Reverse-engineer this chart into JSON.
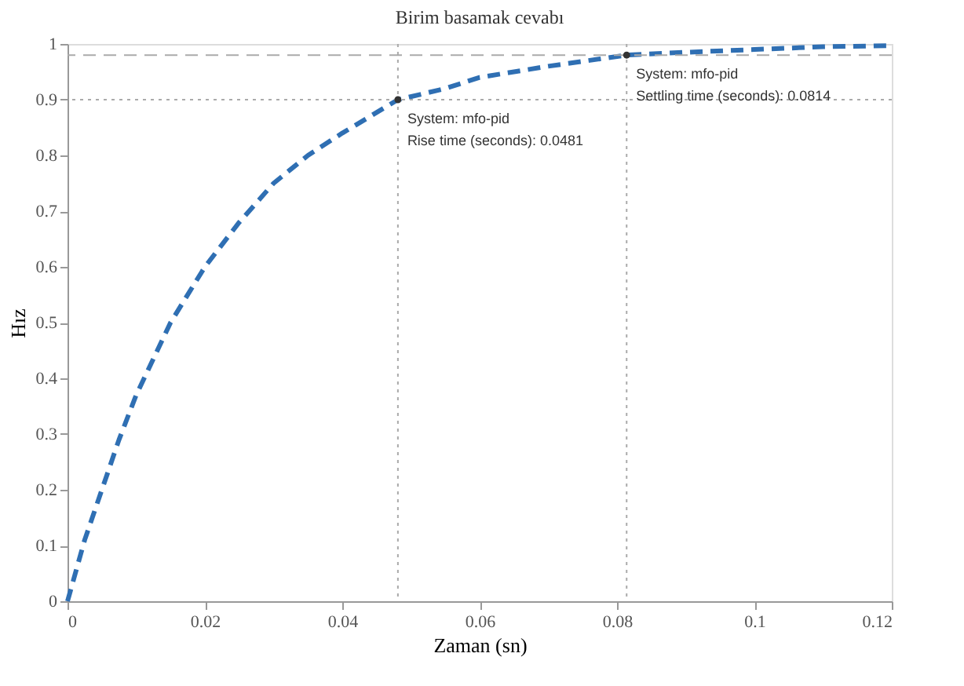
{
  "chart_data": {
    "type": "line",
    "title": "Birim basamak cevabı",
    "xlabel": "Zaman (sn)",
    "ylabel": "Hız",
    "x": [
      0,
      0.0025,
      0.005,
      0.0075,
      0.01,
      0.015,
      0.02,
      0.025,
      0.03,
      0.035,
      0.04,
      0.0481,
      0.055,
      0.06,
      0.07,
      0.0814,
      0.09,
      0.1,
      0.11,
      0.12
    ],
    "series": [
      {
        "color": "#2f6fb3",
        "values": [
          0,
          0.11,
          0.2,
          0.29,
          0.37,
          0.5,
          0.6,
          0.68,
          0.75,
          0.8,
          0.84,
          0.9,
          0.92,
          0.94,
          0.96,
          0.98,
          0.985,
          0.99,
          0.995,
          0.997
        ]
      }
    ],
    "xlim": [
      0,
      0.12
    ],
    "xticks": [
      0,
      0.02,
      0.04,
      0.06,
      0.08,
      0.1,
      0.12
    ],
    "ylim": [
      0,
      1
    ],
    "yticks": [
      0,
      0.1,
      0.2,
      0.3,
      0.4,
      0.5,
      0.6,
      0.7,
      0.8,
      0.9,
      1
    ],
    "ref_lines": [
      {
        "axis": "y",
        "value": 0.9,
        "color": "#aaaaaa",
        "line_style": "dotted"
      },
      {
        "axis": "y",
        "value": 0.98,
        "color": "#aaaaaa",
        "line_style": "dashed"
      },
      {
        "axis": "x",
        "value": 0.0481,
        "color": "#aaaaaa",
        "line_style": "dotted"
      },
      {
        "axis": "x",
        "value": 0.0814,
        "color": "#aaaaaa",
        "line_style": "dotted"
      }
    ],
    "annotations": [
      {
        "text": "System: mfo-pid\nRise time (seconds): 0.0481",
        "x": 0.0481,
        "y": 0.9
      },
      {
        "text": "System: mfo-pid\nSettling time (seconds): 0.0814",
        "x": 0.0814,
        "y": 0.98
      }
    ],
    "line_style": "dashed",
    "marker": "none",
    "grid": false
  }
}
